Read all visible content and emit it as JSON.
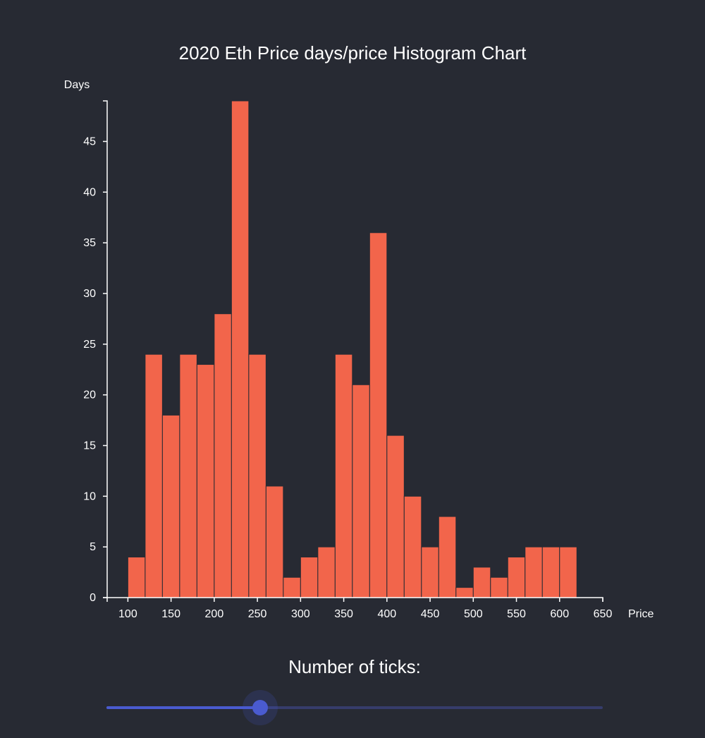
{
  "chart_data": {
    "type": "bar",
    "title": "2020 Eth Price days/price Histogram Chart",
    "xlabel": "Price",
    "ylabel": "Days",
    "bin_width": 20,
    "bins_start": [
      100,
      120,
      140,
      160,
      180,
      200,
      220,
      240,
      260,
      280,
      300,
      320,
      340,
      360,
      380,
      400,
      420,
      440,
      460,
      480,
      500,
      520,
      540,
      560,
      580,
      600
    ],
    "values": [
      4,
      24,
      18,
      24,
      23,
      28,
      49,
      24,
      11,
      2,
      4,
      5,
      24,
      21,
      36,
      16,
      10,
      5,
      8,
      1,
      3,
      2,
      4,
      5,
      5,
      5
    ],
    "xlim": [
      76,
      650
    ],
    "ylim": [
      0,
      49
    ],
    "x_ticks": [
      100,
      150,
      200,
      250,
      300,
      350,
      400,
      450,
      500,
      550,
      600,
      650
    ],
    "y_ticks": [
      0,
      5,
      10,
      15,
      20,
      25,
      30,
      35,
      40,
      45
    ],
    "bar_color": "#f2654b",
    "grid": false
  },
  "controls": {
    "ticks_label": "Number of ticks:",
    "slider_fraction": 0.31,
    "accent_color": "#4a5bd0"
  }
}
